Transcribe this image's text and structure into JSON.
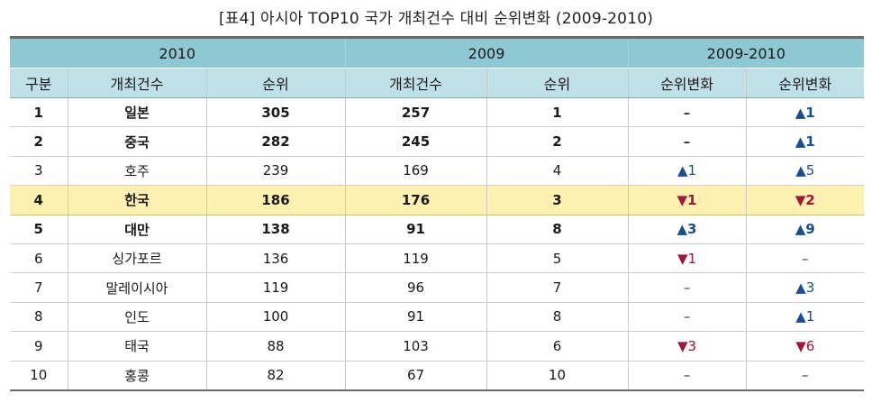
{
  "caption": "[표4] 아시아 TOP10 국가 개최건수 대비 순위변화 (2009-2010)",
  "header_groups": [
    "2010",
    "2009",
    "2009-2010"
  ],
  "columns": [
    "구분",
    "개최건수",
    "순위",
    "개최건수",
    "순위",
    "순위변화",
    "순위변화"
  ],
  "rows": [
    {
      "rank": "1",
      "country": "일본",
      "count_2010": "305",
      "count_2009": "257",
      "rank_2009": "1",
      "change_a": "–",
      "change_a_dir": "neutral",
      "change_b": "▲1",
      "change_b_dir": "up",
      "bold": true,
      "highlight": false
    },
    {
      "rank": "2",
      "country": "중국",
      "count_2010": "282",
      "count_2009": "245",
      "rank_2009": "2",
      "change_a": "–",
      "change_a_dir": "neutral",
      "change_b": "▲1",
      "change_b_dir": "up",
      "bold": true,
      "highlight": false
    },
    {
      "rank": "3",
      "country": "호주",
      "count_2010": "239",
      "count_2009": "169",
      "rank_2009": "4",
      "change_a": "▲1",
      "change_a_dir": "up",
      "change_b": "▲5",
      "change_b_dir": "up",
      "bold": false,
      "highlight": false
    },
    {
      "rank": "4",
      "country": "한국",
      "count_2010": "186",
      "count_2009": "176",
      "rank_2009": "3",
      "change_a": "▼1",
      "change_a_dir": "down",
      "change_b": "▼2",
      "change_b_dir": "down",
      "bold": true,
      "highlight": true
    },
    {
      "rank": "5",
      "country": "대만",
      "count_2010": "138",
      "count_2009": "91",
      "rank_2009": "8",
      "change_a": "▲3",
      "change_a_dir": "up",
      "change_b": "▲9",
      "change_b_dir": "up",
      "bold": true,
      "highlight": false
    },
    {
      "rank": "6",
      "country": "싱가포르",
      "count_2010": "136",
      "count_2009": "119",
      "rank_2009": "5",
      "change_a": "▼1",
      "change_a_dir": "down",
      "change_b": "–",
      "change_b_dir": "neutral",
      "bold": false,
      "highlight": false
    },
    {
      "rank": "7",
      "country": "말레이시아",
      "count_2010": "119",
      "count_2009": "96",
      "rank_2009": "7",
      "change_a": "–",
      "change_a_dir": "neutral",
      "change_b": "▲3",
      "change_b_dir": "up",
      "bold": false,
      "highlight": false
    },
    {
      "rank": "8",
      "country": "인도",
      "count_2010": "100",
      "count_2009": "91",
      "rank_2009": "8",
      "change_a": "–",
      "change_a_dir": "neutral",
      "change_b": "▲1",
      "change_b_dir": "up",
      "bold": false,
      "highlight": false
    },
    {
      "rank": "9",
      "country": "태국",
      "count_2010": "88",
      "count_2009": "103",
      "rank_2009": "6",
      "change_a": "▼3",
      "change_a_dir": "down",
      "change_b": "▼6",
      "change_b_dir": "down",
      "bold": false,
      "highlight": false
    },
    {
      "rank": "10",
      "country": "홍콩",
      "count_2010": "82",
      "count_2009": "67",
      "rank_2009": "10",
      "change_a": "–",
      "change_a_dir": "neutral",
      "change_b": "–",
      "change_b_dir": "neutral",
      "bold": false,
      "highlight": false
    }
  ]
}
